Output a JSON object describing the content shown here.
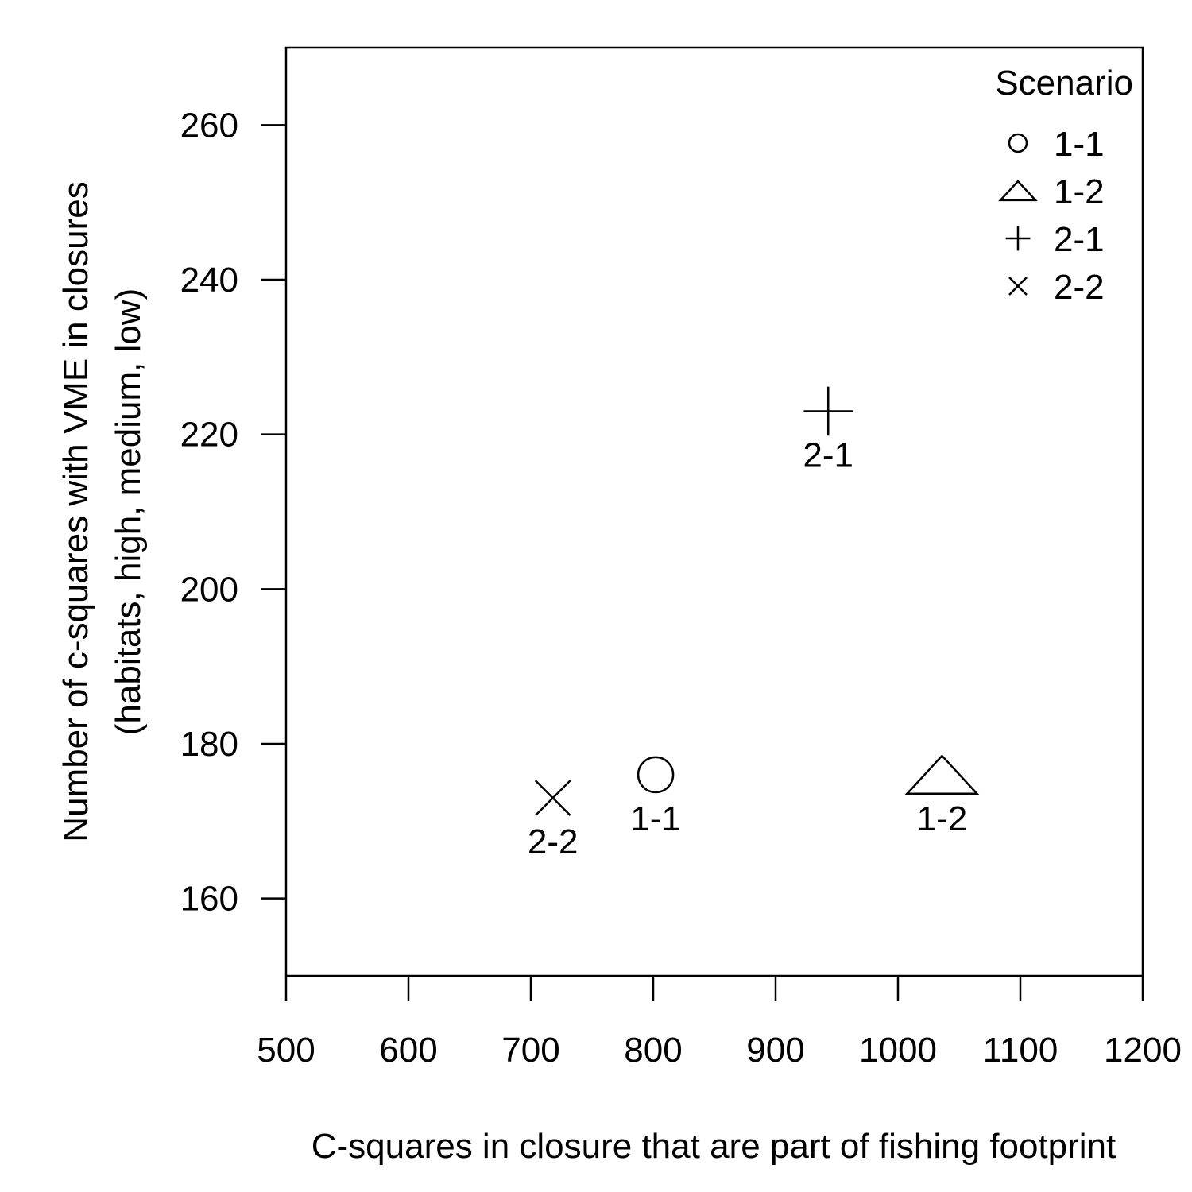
{
  "chart_data": {
    "type": "scatter",
    "title": "",
    "xlabel": "C-squares in closure that are part of fishing footprint",
    "ylabel_lines": [
      "Number of c-squares with VME in closures",
      "(habitats, high, medium, low)"
    ],
    "xlim": [
      500,
      1200
    ],
    "ylim": [
      150,
      270
    ],
    "x_ticks": [
      500,
      600,
      700,
      800,
      900,
      1000,
      1100,
      1200
    ],
    "y_ticks": [
      160,
      180,
      200,
      220,
      240,
      260
    ],
    "grid": false,
    "legend": {
      "title": "Scenario",
      "position": "top-right",
      "entries": [
        {
          "label": "1-1",
          "marker": "circle"
        },
        {
          "label": "1-2",
          "marker": "triangle"
        },
        {
          "label": "2-1",
          "marker": "plus"
        },
        {
          "label": "2-2",
          "marker": "cross"
        }
      ]
    },
    "series": [
      {
        "name": "1-1",
        "marker": "circle",
        "x": 802,
        "y": 176,
        "point_label": "1-1"
      },
      {
        "name": "1-2",
        "marker": "triangle",
        "x": 1036,
        "y": 176,
        "point_label": "1-2"
      },
      {
        "name": "2-1",
        "marker": "plus",
        "x": 943,
        "y": 223,
        "point_label": "2-1"
      },
      {
        "name": "2-2",
        "marker": "cross",
        "x": 718,
        "y": 173,
        "point_label": "2-2"
      }
    ],
    "colors": {
      "foreground": "#000000",
      "background": "#ffffff"
    }
  }
}
